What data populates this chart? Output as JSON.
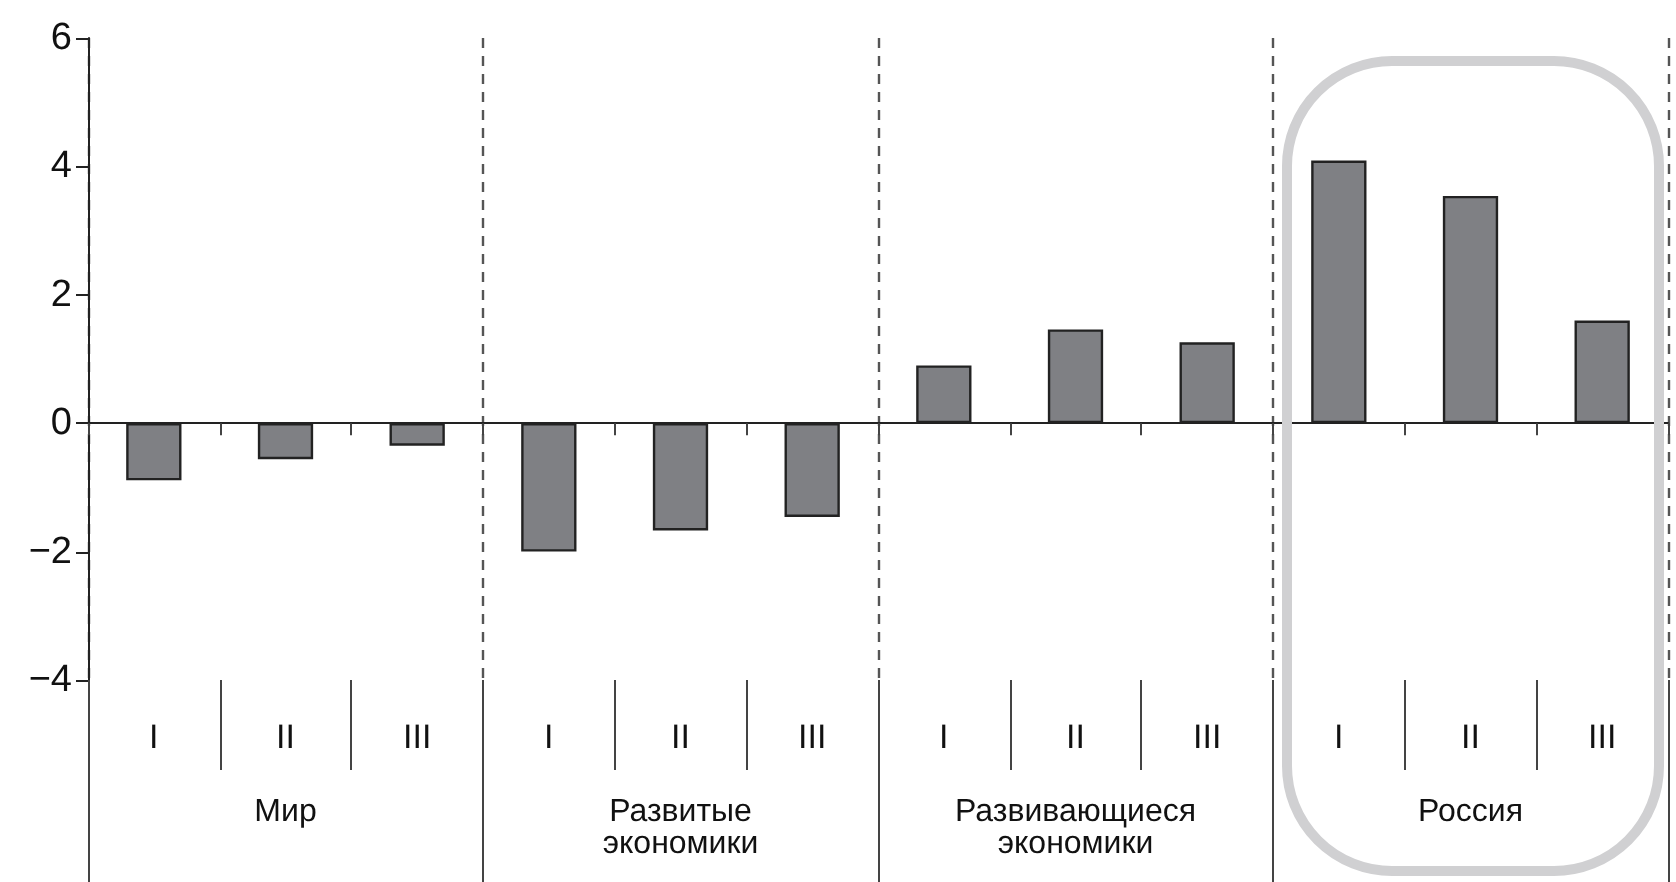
{
  "chart_data": {
    "type": "bar",
    "categories": [
      "I",
      "II",
      "III",
      "I",
      "II",
      "III",
      "I",
      "II",
      "III",
      "I",
      "II",
      "III"
    ],
    "values": [
      -0.89,
      -0.56,
      -0.35,
      -2.0,
      -1.67,
      -1.46,
      0.9,
      1.46,
      1.26,
      4.09,
      3.54,
      1.6
    ],
    "color": "#7f8084",
    "ylim": [
      -4,
      6
    ],
    "yticks": [
      -4,
      -2,
      0,
      2,
      4,
      6
    ],
    "annotations": [
      "Мир",
      "Развитые экономики",
      "Развивающиеся экономики",
      "Россия"
    ],
    "grid": false
  }
}
